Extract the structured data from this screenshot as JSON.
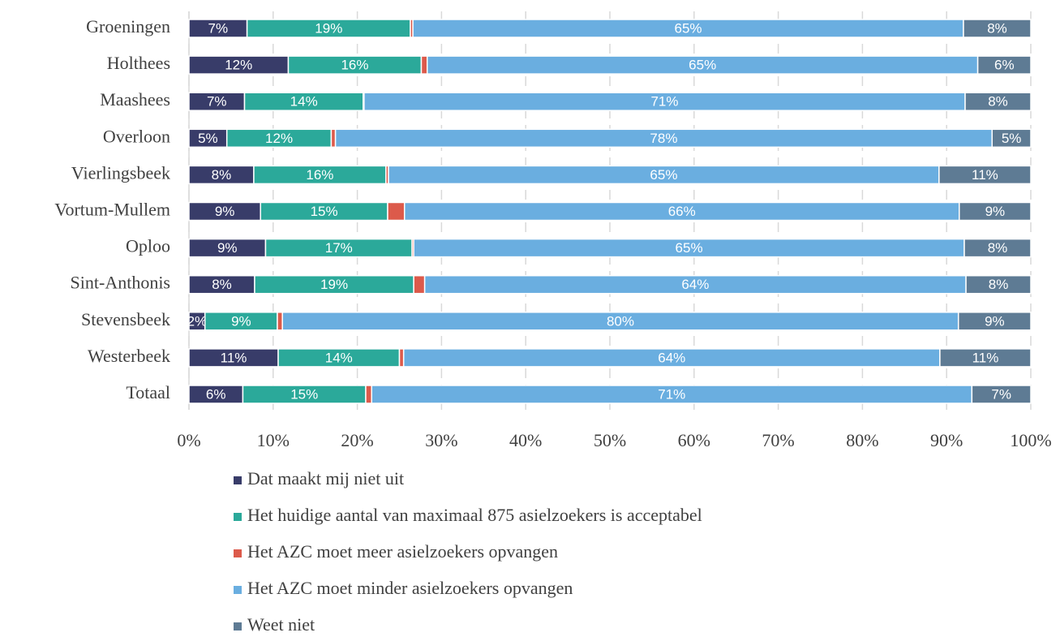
{
  "chart_data": {
    "type": "stacked_barh",
    "categories": [
      "Groeningen",
      "Holthees",
      "Maashees",
      "Overloon",
      "Vierlingsbeek",
      "Vortum-Mullem",
      "Oploo",
      "Sint-Anthonis",
      "Stevensbeek",
      "Westerbeek",
      "Totaal"
    ],
    "series": [
      {
        "name": "Dat maakt mij niet uit",
        "color": "#383c69",
        "values": [
          6.9,
          11.8,
          6.6,
          4.5,
          7.7,
          8.5,
          9.1,
          7.8,
          1.9,
          10.6,
          6.4
        ],
        "value_labels": [
          "7%",
          "12%",
          "7%",
          "5%",
          "8%",
          "9%",
          "9%",
          "8%",
          "2%",
          "11%",
          "6%"
        ]
      },
      {
        "name": "Het huidige aantal van maximaal 875 asielzoekers is acceptabel",
        "color": "#2ba99a",
        "values": [
          19.4,
          15.8,
          14.1,
          12.4,
          15.7,
          15.1,
          17.4,
          18.9,
          8.6,
          14.4,
          14.6
        ],
        "value_labels": [
          "19%",
          "16%",
          "14%",
          "12%",
          "16%",
          "15%",
          "17%",
          "19%",
          "9%",
          "14%",
          "15%"
        ]
      },
      {
        "name": "Het AZC moet meer asielzoekers opvangen",
        "color": "#dc5a4b",
        "values": [
          0.3,
          0.7,
          0.1,
          0.5,
          0.3,
          2.0,
          0.2,
          1.3,
          0.6,
          0.5,
          0.7
        ]
      },
      {
        "name": "Het AZC moet minder asielzoekers opvangen",
        "color": "#6aaee0",
        "values": [
          65.4,
          65.4,
          71.4,
          78.0,
          65.4,
          65.9,
          65.4,
          64.3,
          80.3,
          63.7,
          71.3
        ],
        "value_labels": [
          "65%",
          "65%",
          "71%",
          "78%",
          "65%",
          "66%",
          "65%",
          "64%",
          "80%",
          "64%",
          "71%"
        ]
      },
      {
        "name": "Weet niet",
        "color": "#5e7b94",
        "values": [
          8.0,
          6.3,
          7.8,
          4.6,
          10.9,
          8.5,
          7.9,
          7.7,
          8.6,
          10.8,
          7.0
        ],
        "value_labels": [
          "8%",
          "6%",
          "8%",
          "5%",
          "11%",
          "9%",
          "8%",
          "8%",
          "9%",
          "11%",
          "7%"
        ]
      }
    ],
    "xlim": [
      0,
      100
    ],
    "xticks": [
      {
        "value": 0,
        "label": "0%"
      },
      {
        "value": 10,
        "label": "10%"
      },
      {
        "value": 20,
        "label": "20%"
      },
      {
        "value": 30,
        "label": "30%"
      },
      {
        "value": 40,
        "label": "40%"
      },
      {
        "value": 50,
        "label": "50%"
      },
      {
        "value": 60,
        "label": "60%"
      },
      {
        "value": 70,
        "label": "70%"
      },
      {
        "value": 80,
        "label": "80%"
      },
      {
        "value": 90,
        "label": "90%"
      },
      {
        "value": 100,
        "label": "100%"
      }
    ],
    "grid": true,
    "legend": "bottom"
  }
}
